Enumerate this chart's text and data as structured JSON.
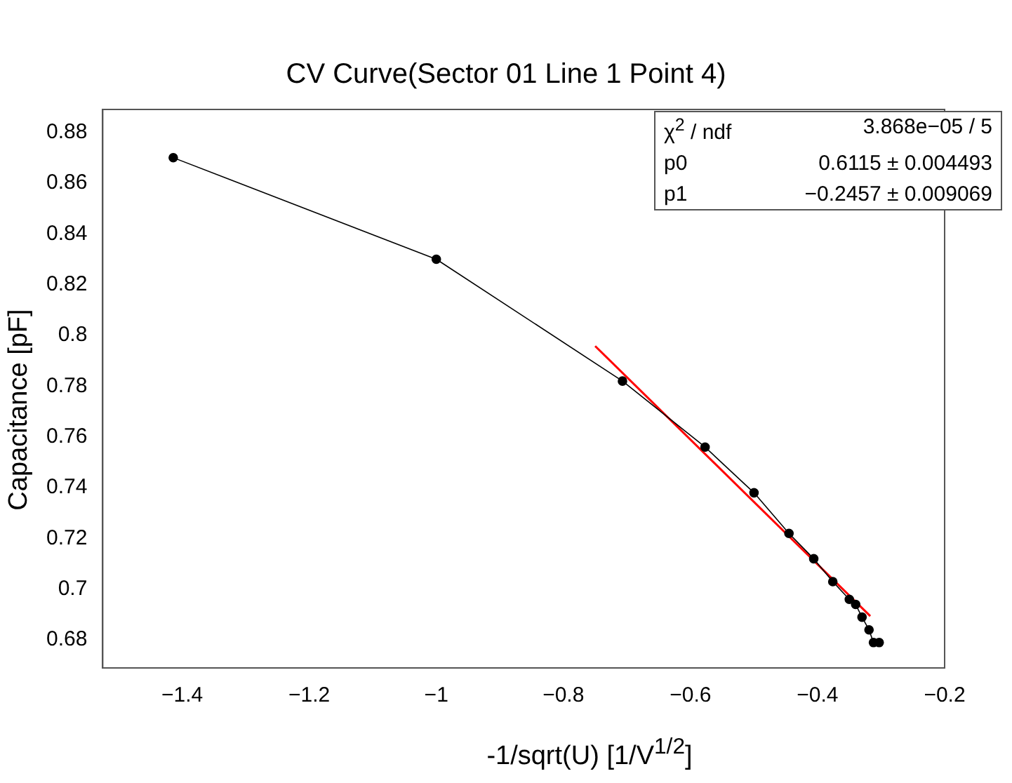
{
  "chart_data": {
    "type": "scatter",
    "title": "CV Curve(Sector 01 Line 1 Point 4)",
    "xlabel": "-1/sqrt(U) [1/V$^{1/2}$]",
    "ylabel": "Capacitance [pF]",
    "x": [
      -1.414,
      -1.0,
      -0.707,
      -0.577,
      -0.5,
      -0.445,
      -0.406,
      -0.376,
      -0.35,
      -0.34,
      -0.33,
      -0.319,
      -0.312,
      -0.303
    ],
    "series": [
      {
        "type": "line",
        "color": "#000000",
        "marker": "circle",
        "values": [
          0.87,
          0.83,
          0.782,
          0.756,
          0.738,
          0.722,
          0.712,
          0.703,
          0.696,
          0.694,
          0.689,
          0.684,
          0.679,
          0.679
        ]
      },
      {
        "type": "line",
        "color": "#ff0000",
        "marker": "none",
        "x": [
          -0.75,
          -0.317
        ],
        "values": [
          0.7958,
          0.6894
        ]
      }
    ],
    "xlim": [
      -1.525,
      -0.2
    ],
    "xticks": [
      {
        "value": -1.4,
        "label": "−1.4"
      },
      {
        "value": -1.2,
        "label": "−1.2"
      },
      {
        "value": -1,
        "label": "−1"
      },
      {
        "value": -0.8,
        "label": "−0.8"
      },
      {
        "value": -0.6,
        "label": "−0.6"
      },
      {
        "value": -0.4,
        "label": "−0.4"
      },
      {
        "value": -0.2,
        "label": "−0.2"
      }
    ],
    "ylim": [
      0.669,
      0.889
    ],
    "yticks": [
      0.68,
      0.7,
      0.72,
      0.74,
      0.76,
      0.78,
      0.8,
      0.82,
      0.84,
      0.86,
      0.88
    ],
    "grid": false,
    "legend": false,
    "annotations": [
      "χ$^{2}$ / ndf",
      "3.868e−05 / 5",
      "p0",
      "0.6115 ± 0.004493",
      "p1",
      "−0.2457 ± 0.009069"
    ]
  }
}
